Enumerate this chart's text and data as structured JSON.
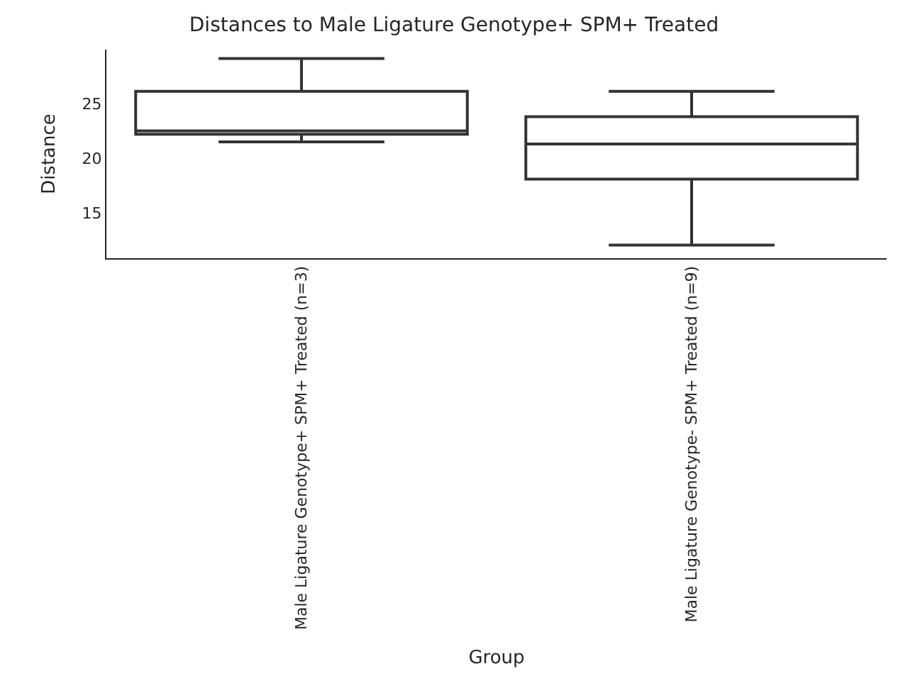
{
  "chart_data": {
    "type": "box",
    "title": "Distances to Male Ligature Genotype+ SPM+ Treated",
    "xlabel": "Group",
    "ylabel": "Distance",
    "categories": [
      "Male Ligature Genotype+ SPM+ Treated (n=3)",
      "Male Ligature Genotype- SPM+ Treated (n=9)"
    ],
    "boxes": [
      {
        "low": 21.5,
        "q1": 22.2,
        "median": 22.5,
        "q3": 26.1,
        "high": 29.1
      },
      {
        "low": 12.1,
        "q1": 18.1,
        "median": 21.3,
        "q3": 23.8,
        "high": 26.1
      }
    ],
    "color": "#333333",
    "ylim": [
      10.9,
      29.9
    ],
    "yticks": [
      15,
      20,
      25
    ]
  }
}
